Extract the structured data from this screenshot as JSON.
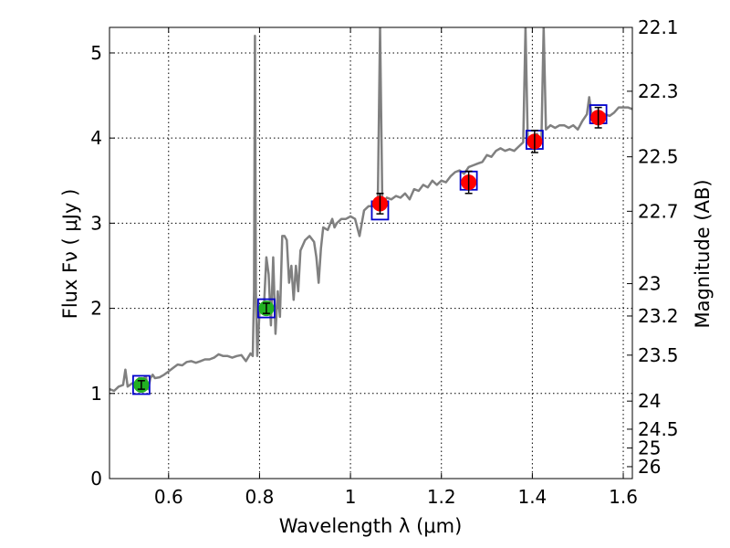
{
  "chart_data": {
    "type": "line",
    "title": "",
    "xlabel": "Wavelength  λ (μm)",
    "ylabel": "Flux  Fν  ( μJy )",
    "ylabel_right": "Magnitude (AB)",
    "xlim": [
      0.47,
      1.62
    ],
    "ylim": [
      0,
      5.3
    ],
    "x_ticks": [
      0.6,
      0.8,
      1.0,
      1.2,
      1.4,
      1.6
    ],
    "x_tick_labels": [
      "0.6",
      "0.8",
      "1",
      "1.2",
      "1.4",
      "1.6"
    ],
    "y_ticks": [
      0,
      1,
      2,
      3,
      4,
      5
    ],
    "y_tick_labels": [
      "0",
      "1",
      "2",
      "3",
      "4",
      "5"
    ],
    "magnitude_ticks": [
      {
        "flux": 5.47,
        "label": "22.1"
      },
      {
        "flux": 4.55,
        "label": "22.3"
      },
      {
        "flux": 3.78,
        "label": "22.5"
      },
      {
        "flux": 3.14,
        "label": "22.7"
      },
      {
        "flux": 2.29,
        "label": "23"
      },
      {
        "flux": 1.91,
        "label": "23.2"
      },
      {
        "flux": 1.45,
        "label": "23.5"
      },
      {
        "flux": 0.91,
        "label": "24"
      },
      {
        "flux": 0.58,
        "label": "24.5"
      },
      {
        "flux": 0.36,
        "label": "25"
      },
      {
        "flux": 0.14,
        "label": "26"
      }
    ],
    "grid": true,
    "colors": {
      "spectrum": "#808080",
      "model_box": "#0000cc",
      "green_point": "#22b022",
      "red_point": "#ff0000",
      "error_bar": "#000000"
    },
    "series": [
      {
        "name": "model spectrum",
        "kind": "line",
        "x": [
          0.47,
          0.48,
          0.49,
          0.5,
          0.505,
          0.51,
          0.52,
          0.53,
          0.535,
          0.54,
          0.55,
          0.555,
          0.56,
          0.565,
          0.57,
          0.58,
          0.59,
          0.6,
          0.61,
          0.62,
          0.63,
          0.64,
          0.65,
          0.66,
          0.67,
          0.68,
          0.69,
          0.7,
          0.71,
          0.72,
          0.73,
          0.74,
          0.75,
          0.76,
          0.77,
          0.78,
          0.785,
          0.788,
          0.79,
          0.792,
          0.795,
          0.8,
          0.81,
          0.815,
          0.82,
          0.825,
          0.83,
          0.835,
          0.84,
          0.845,
          0.85,
          0.855,
          0.86,
          0.865,
          0.87,
          0.875,
          0.88,
          0.885,
          0.89,
          0.9,
          0.91,
          0.92,
          0.925,
          0.93,
          0.935,
          0.94,
          0.95,
          0.96,
          0.965,
          0.97,
          0.98,
          0.99,
          1.0,
          1.01,
          1.02,
          1.03,
          1.04,
          1.05,
          1.06,
          1.065,
          1.07,
          1.08,
          1.09,
          1.1,
          1.11,
          1.12,
          1.13,
          1.14,
          1.15,
          1.16,
          1.17,
          1.18,
          1.19,
          1.2,
          1.21,
          1.22,
          1.23,
          1.24,
          1.25,
          1.26,
          1.27,
          1.28,
          1.29,
          1.3,
          1.31,
          1.32,
          1.33,
          1.34,
          1.35,
          1.36,
          1.37,
          1.38,
          1.385,
          1.39,
          1.395,
          1.4,
          1.41,
          1.42,
          1.425,
          1.43,
          1.44,
          1.45,
          1.46,
          1.47,
          1.48,
          1.49,
          1.5,
          1.51,
          1.52,
          1.525,
          1.53,
          1.54,
          1.55,
          1.56,
          1.57,
          1.58,
          1.59,
          1.6,
          1.61,
          1.62
        ],
        "y": [
          1.05,
          1.03,
          1.08,
          1.1,
          1.28,
          1.08,
          1.12,
          1.1,
          1.18,
          1.15,
          1.2,
          1.05,
          1.18,
          1.22,
          1.18,
          1.19,
          1.22,
          1.26,
          1.3,
          1.34,
          1.33,
          1.37,
          1.38,
          1.36,
          1.38,
          1.4,
          1.4,
          1.42,
          1.46,
          1.44,
          1.44,
          1.42,
          1.44,
          1.45,
          1.38,
          1.47,
          1.44,
          2.2,
          5.2,
          2.2,
          1.44,
          1.95,
          2.05,
          2.6,
          2.4,
          1.8,
          2.6,
          1.7,
          2.2,
          1.9,
          2.85,
          2.85,
          2.8,
          2.3,
          2.5,
          2.1,
          2.5,
          2.2,
          2.68,
          2.8,
          2.85,
          2.78,
          2.6,
          2.3,
          2.7,
          2.95,
          2.92,
          3.05,
          2.95,
          3.0,
          3.05,
          3.05,
          3.08,
          3.05,
          2.85,
          3.15,
          3.2,
          3.2,
          3.22,
          5.3,
          3.22,
          3.3,
          3.28,
          3.32,
          3.3,
          3.35,
          3.28,
          3.4,
          3.38,
          3.45,
          3.42,
          3.5,
          3.45,
          3.5,
          3.48,
          3.55,
          3.6,
          3.62,
          3.58,
          3.66,
          3.68,
          3.7,
          3.72,
          3.8,
          3.78,
          3.85,
          3.88,
          3.85,
          3.87,
          3.85,
          3.9,
          3.95,
          5.3,
          3.95,
          3.98,
          4.0,
          4.05,
          3.95,
          5.3,
          4.1,
          4.15,
          4.12,
          4.15,
          4.15,
          4.12,
          4.15,
          4.1,
          4.2,
          4.28,
          4.48,
          4.28,
          4.28,
          4.3,
          4.28,
          4.26,
          4.3,
          4.36,
          4.36,
          4.36,
          4.34
        ]
      },
      {
        "name": "model synthetic photometry",
        "kind": "box",
        "x": [
          0.54,
          0.815,
          1.065,
          1.26,
          1.405,
          1.545
        ],
        "y": [
          1.1,
          2.0,
          3.15,
          3.5,
          3.98,
          4.28
        ]
      },
      {
        "name": "observed (green)",
        "kind": "point",
        "x": [
          0.54,
          0.815
        ],
        "y": [
          1.1,
          2.0
        ],
        "err": [
          0.05,
          0.06
        ]
      },
      {
        "name": "observed (red)",
        "kind": "point",
        "x": [
          1.065,
          1.26,
          1.405,
          1.545
        ],
        "y": [
          3.23,
          3.48,
          3.96,
          4.24
        ],
        "err": [
          0.12,
          0.13,
          0.13,
          0.12
        ]
      }
    ]
  }
}
